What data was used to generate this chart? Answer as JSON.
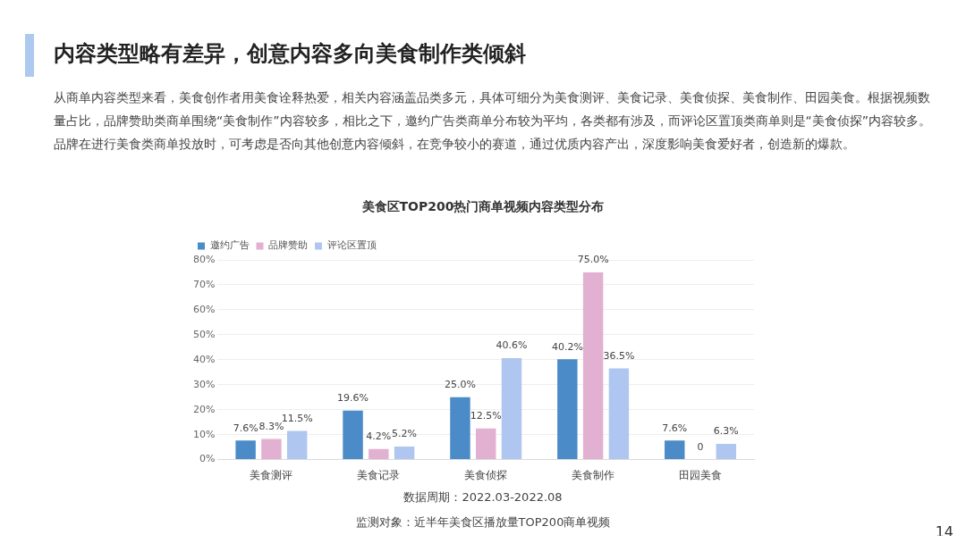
{
  "chart_data": {
    "type": "bar",
    "title": "内容类型略有差异，创意内容多向美食制作类倾斜",
    "subtitle": "从商单内容类型来看，美食创作者用美食诠释热爱，相关内容涵盖品类多元，具体可细分为美食测评、美食记录、美食侦探、美食制作、田园美食。根据视频数量占比，品牌赞助类商单围绕“美食制作”内容较多，相比之下，邀约广告类商单分布较为平均，各类都有涉及，而评论区置顶类商单则是“美食侦探”内容较多。品牌在进行美食类商单投放时，可考虑是否向其他创意内容倾斜，在竞争较小的赛道，通过优质内容产出，深度影响美食爱好者，创造新的爆款。",
    "annotations": [
      "美食区TOP200热门商单视频内容类型分布",
      "数据周期：2022.03-2022.08",
      "监测对象：近半年美食区播放量TOP200商单视频",
      "14"
    ],
    "categories": [
      "美食测评",
      "美食记录",
      "美食侦探",
      "美食制作",
      "田园美食"
    ],
    "series": [
      {
        "name": "邀约广告",
        "color": "#4a8bc8",
        "values": [
          7.6,
          19.6,
          25.0,
          40.2,
          7.6
        ],
        "value_labels": [
          "7.6%",
          "19.6%",
          "25.0%",
          "40.2%",
          "7.6%"
        ]
      },
      {
        "name": "品牌赞助",
        "color": "#e2b0d0",
        "values": [
          8.3,
          4.2,
          12.5,
          75.0,
          0
        ],
        "value_labels": [
          "8.3%",
          "4.2%",
          "12.5%",
          "75.0%",
          "0"
        ]
      },
      {
        "name": "评论区置顶",
        "color": "#afc6f1",
        "values": [
          11.5,
          5.2,
          40.6,
          36.5,
          6.3
        ],
        "value_labels": [
          "11.5%",
          "5.2%",
          "40.6%",
          "36.5%",
          "6.3%"
        ]
      }
    ],
    "ylim": [
      0,
      80
    ],
    "yticks": [
      {
        "value": 0,
        "label": "0%"
      },
      {
        "value": 10,
        "label": "10%"
      },
      {
        "value": 20,
        "label": "20%"
      },
      {
        "value": 30,
        "label": "30%"
      },
      {
        "value": 40,
        "label": "40%"
      },
      {
        "value": 50,
        "label": "50%"
      },
      {
        "value": 60,
        "label": "60%"
      },
      {
        "value": 70,
        "label": "70%"
      },
      {
        "value": 80,
        "label": "80%"
      }
    ],
    "grid": "y",
    "legend": "top left"
  }
}
